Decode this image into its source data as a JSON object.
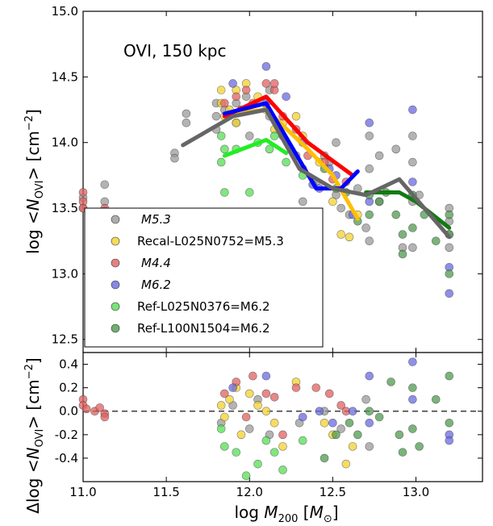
{
  "chart_data": [
    {
      "type": "scatter",
      "panel": "top",
      "annotation": "OVI, 150 kpc",
      "ylabel": "log <N_OVI> [cm^-2]",
      "ylabel_parts": {
        "prefix": "log <",
        "N": "N",
        "sub": "OVI",
        "suffix": "> [cm",
        "sup": "−2",
        "close": "]"
      },
      "xlim": [
        11.0,
        13.4
      ],
      "ylim": [
        12.4,
        15.0
      ],
      "yticks": [
        "12.5",
        "13.0",
        "13.5",
        "14.0",
        "14.5",
        "15.0"
      ],
      "legend": {
        "placement": "lower-left"
      },
      "series": [
        {
          "name": "M5.3",
          "display": "M5.3",
          "color": "#999999",
          "line_color": "#666666",
          "points": [
            [
              11.0,
              13.58
            ],
            [
              11.0,
              13.5
            ],
            [
              11.07,
              13.43
            ],
            [
              11.13,
              13.68
            ],
            [
              11.13,
              13.55
            ],
            [
              11.13,
              13.48
            ],
            [
              11.55,
              13.92
            ],
            [
              11.55,
              13.88
            ],
            [
              11.62,
              14.22
            ],
            [
              11.62,
              14.15
            ],
            [
              11.8,
              14.3
            ],
            [
              11.8,
              14.2
            ],
            [
              11.8,
              14.1
            ],
            [
              11.85,
              14.25
            ],
            [
              11.92,
              14.3
            ],
            [
              11.92,
              14.15
            ],
            [
              11.98,
              14.35
            ],
            [
              12.0,
              14.05
            ],
            [
              12.05,
              14.3
            ],
            [
              12.12,
              14.4
            ],
            [
              12.12,
              14.2
            ],
            [
              12.2,
              14.05
            ],
            [
              12.28,
              13.9
            ],
            [
              12.32,
              13.8
            ],
            [
              12.32,
              13.55
            ],
            [
              12.4,
              13.7
            ],
            [
              12.45,
              13.9
            ],
            [
              12.48,
              13.85
            ],
            [
              12.52,
              14.0
            ],
            [
              12.52,
              13.6
            ],
            [
              12.55,
              13.5
            ],
            [
              12.6,
              13.45
            ],
            [
              12.65,
              13.65
            ],
            [
              12.7,
              13.35
            ],
            [
              12.72,
              14.05
            ],
            [
              12.72,
              13.8
            ],
            [
              12.72,
              13.25
            ],
            [
              12.78,
              13.9
            ],
            [
              12.78,
              13.55
            ],
            [
              12.88,
              13.95
            ],
            [
              12.92,
              13.2
            ],
            [
              12.98,
              14.05
            ],
            [
              12.98,
              13.85
            ],
            [
              12.98,
              13.55
            ],
            [
              12.98,
              13.2
            ],
            [
              13.02,
              13.6
            ],
            [
              13.2,
              13.5
            ],
            [
              13.2,
              13.4
            ],
            [
              13.2,
              13.3
            ],
            [
              13.2,
              13.2
            ]
          ],
          "line_x": [
            11.6,
            11.9,
            12.1,
            12.3,
            12.5,
            12.7,
            12.9,
            13.2
          ],
          "line_y": [
            13.98,
            14.2,
            14.25,
            13.8,
            13.65,
            13.6,
            13.72,
            13.28
          ]
        },
        {
          "name": "Recal-L025N0752=M5.3",
          "display": "Recal-L025N0752=M5.3",
          "color": "#f2d230",
          "line_color": "#ffbf00",
          "points": [
            [
              11.83,
              14.4
            ],
            [
              11.83,
              14.3
            ],
            [
              11.85,
              14.2
            ],
            [
              11.88,
              14.25
            ],
            [
              11.92,
              14.4
            ],
            [
              11.92,
              14.15
            ],
            [
              11.98,
              14.45
            ],
            [
              12.05,
              14.35
            ],
            [
              12.1,
              14.25
            ],
            [
              12.15,
              14.1
            ],
            [
              12.2,
              14.15
            ],
            [
              12.28,
              14.2
            ],
            [
              12.32,
              14.05
            ],
            [
              12.42,
              13.85
            ],
            [
              12.5,
              13.55
            ],
            [
              12.55,
              13.3
            ],
            [
              12.6,
              13.28
            ],
            [
              12.65,
              13.45
            ]
          ],
          "line_x": [
            11.85,
            12.1,
            12.35,
            12.5,
            12.65
          ],
          "line_y": [
            14.22,
            14.25,
            13.95,
            13.75,
            13.42
          ]
        },
        {
          "name": "M4.4",
          "display": "M4.4",
          "color": "#e06060",
          "line_color": "#ff0000",
          "points": [
            [
              11.0,
              13.62
            ],
            [
              11.0,
              13.55
            ],
            [
              11.0,
              13.5
            ],
            [
              11.07,
              13.45
            ],
            [
              11.07,
              13.42
            ],
            [
              11.13,
              13.5
            ],
            [
              11.85,
              14.3
            ],
            [
              11.92,
              14.35
            ],
            [
              11.95,
              14.25
            ],
            [
              11.98,
              14.4
            ],
            [
              12.02,
              14.3
            ],
            [
              12.1,
              14.45
            ],
            [
              12.15,
              14.4
            ],
            [
              12.15,
              14.45
            ],
            [
              12.2,
              14.2
            ],
            [
              12.28,
              14.1
            ],
            [
              12.35,
              13.9
            ],
            [
              12.45,
              13.85
            ],
            [
              12.5,
              13.72
            ],
            [
              12.58,
              13.7
            ]
          ],
          "line_x": [
            11.85,
            12.1,
            12.35,
            12.62
          ],
          "line_y": [
            14.2,
            14.35,
            14.0,
            13.75
          ]
        },
        {
          "name": "M6.2",
          "display": "M6.2",
          "color": "#6a6ae0",
          "line_color": "#0000ff",
          "points": [
            [
              11.9,
              14.45
            ],
            [
              11.98,
              14.25
            ],
            [
              12.1,
              14.58
            ],
            [
              12.1,
              14.3
            ],
            [
              12.22,
              14.35
            ],
            [
              12.32,
              14.0
            ],
            [
              12.38,
              13.68
            ],
            [
              12.42,
              13.65
            ],
            [
              12.48,
              13.8
            ],
            [
              12.52,
              13.75
            ],
            [
              12.62,
              13.45
            ],
            [
              12.72,
              14.15
            ],
            [
              12.72,
              13.55
            ],
            [
              12.98,
              14.25
            ],
            [
              12.98,
              13.7
            ],
            [
              13.2,
              13.05
            ],
            [
              13.2,
              12.85
            ]
          ],
          "line_x": [
            11.85,
            12.1,
            12.4,
            12.55,
            12.65
          ],
          "line_y": [
            14.22,
            14.3,
            13.65,
            13.65,
            13.78
          ]
        },
        {
          "name": "Ref-L025N0376=M6.2",
          "display": "Ref-L025N0376=M6.2",
          "color": "#55dd55",
          "line_color": "#22ee22",
          "points": [
            [
              11.83,
              14.05
            ],
            [
              11.83,
              13.85
            ],
            [
              11.85,
              13.95
            ],
            [
              11.85,
              13.62
            ],
            [
              11.92,
              13.95
            ],
            [
              12.0,
              13.62
            ],
            [
              12.0,
              13.45
            ],
            [
              12.05,
              14.0
            ],
            [
              12.12,
              13.95
            ],
            [
              12.15,
              14.05
            ],
            [
              12.22,
              13.85
            ],
            [
              12.32,
              13.75
            ]
          ],
          "line_x": [
            11.85,
            12.1,
            12.22
          ],
          "line_y": [
            13.9,
            14.02,
            13.92
          ]
        },
        {
          "name": "Ref-L100N1504=M6.2",
          "display": "Ref-L100N1504=M6.2",
          "color": "#4f9a4f",
          "line_color": "#137a13",
          "points": [
            [
              12.45,
              13.8
            ],
            [
              12.52,
              13.65
            ],
            [
              12.58,
              13.62
            ],
            [
              12.65,
              13.4
            ],
            [
              12.72,
              13.6
            ],
            [
              12.72,
              13.45
            ],
            [
              12.78,
              13.55
            ],
            [
              12.82,
              13.62
            ],
            [
              12.88,
              13.45
            ],
            [
              12.92,
              13.3
            ],
            [
              12.92,
              13.15
            ],
            [
              12.98,
              13.6
            ],
            [
              12.98,
              13.35
            ],
            [
              13.05,
              13.45
            ],
            [
              13.12,
              13.25
            ],
            [
              13.2,
              13.45
            ],
            [
              13.2,
              13.3
            ],
            [
              13.2,
              13.0
            ]
          ],
          "line_x": [
            12.7,
            12.9,
            13.0,
            13.2
          ],
          "line_y": [
            13.62,
            13.62,
            13.55,
            13.35
          ]
        }
      ]
    },
    {
      "type": "scatter",
      "panel": "bottom",
      "xlabel": "log M200 [M⊙]",
      "xlabel_parts": {
        "prefix": "log ",
        "M": "M",
        "sub": "200",
        "open": " [",
        "Msun": "M",
        "sun": "⊙",
        "close": "]"
      },
      "ylabel": "Δlog <N_OVI> [cm^-2]",
      "ylabel_parts": {
        "prefix": "Δlog <",
        "N": "N",
        "sub": "OVI",
        "suffix": "> [cm",
        "sup": "−2",
        "close": "]"
      },
      "xlim": [
        11.0,
        13.4
      ],
      "ylim": [
        -0.6,
        0.5
      ],
      "xticks": [
        "11.0",
        "11.5",
        "12.0",
        "12.5",
        "13.0"
      ],
      "yticks": [
        "-0.4",
        "-0.2",
        "0.0",
        "0.2",
        "0.4"
      ],
      "reference_line": 0.0,
      "series": [
        {
          "name": "M5.3",
          "color": "#999999",
          "points": [
            [
              11.83,
              -0.1
            ],
            [
              11.9,
              0.05
            ],
            [
              12.0,
              -0.15
            ],
            [
              12.05,
              0.1
            ],
            [
              12.12,
              -0.2
            ],
            [
              12.3,
              -0.1
            ],
            [
              12.45,
              0.0
            ],
            [
              12.55,
              -0.15
            ],
            [
              12.7,
              0.1
            ],
            [
              12.72,
              -0.3
            ]
          ]
        },
        {
          "name": "Recal-L025N0752=M5.3",
          "color": "#f2d230",
          "points": [
            [
              11.83,
              0.05
            ],
            [
              11.85,
              -0.05
            ],
            [
              11.88,
              0.1
            ],
            [
              11.92,
              0.2
            ],
            [
              11.95,
              -0.2
            ],
            [
              12.0,
              0.15
            ],
            [
              12.05,
              0.05
            ],
            [
              12.1,
              0.0
            ],
            [
              12.15,
              -0.1
            ],
            [
              12.2,
              -0.3
            ],
            [
              12.28,
              0.25
            ],
            [
              12.45,
              -0.1
            ],
            [
              12.5,
              -0.2
            ],
            [
              12.58,
              -0.45
            ],
            [
              12.62,
              -0.3
            ]
          ]
        },
        {
          "name": "M4.4",
          "color": "#e06060",
          "points": [
            [
              11.0,
              0.1
            ],
            [
              11.0,
              0.05
            ],
            [
              11.02,
              0.02
            ],
            [
              11.07,
              0.0
            ],
            [
              11.1,
              0.03
            ],
            [
              11.13,
              -0.02
            ],
            [
              11.13,
              -0.05
            ],
            [
              11.85,
              0.15
            ],
            [
              11.92,
              0.25
            ],
            [
              11.98,
              -0.05
            ],
            [
              12.02,
              0.3
            ],
            [
              12.1,
              0.15
            ],
            [
              12.15,
              0.12
            ],
            [
              12.2,
              -0.2
            ],
            [
              12.28,
              0.2
            ],
            [
              12.4,
              0.2
            ],
            [
              12.48,
              0.15
            ],
            [
              12.55,
              0.05
            ],
            [
              12.58,
              0.0
            ]
          ]
        },
        {
          "name": "M6.2",
          "color": "#6a6ae0",
          "points": [
            [
              11.9,
              0.2
            ],
            [
              12.1,
              0.3
            ],
            [
              12.32,
              -0.05
            ],
            [
              12.42,
              0.0
            ],
            [
              12.5,
              -0.1
            ],
            [
              12.62,
              0.0
            ],
            [
              12.72,
              0.3
            ],
            [
              12.72,
              -0.1
            ],
            [
              12.98,
              0.42
            ],
            [
              12.98,
              0.1
            ],
            [
              13.2,
              -0.2
            ],
            [
              13.2,
              -0.25
            ]
          ]
        },
        {
          "name": "Ref-L025N0376=M6.2",
          "color": "#55dd55",
          "points": [
            [
              11.83,
              -0.15
            ],
            [
              11.85,
              -0.3
            ],
            [
              11.92,
              -0.35
            ],
            [
              11.98,
              -0.55
            ],
            [
              12.05,
              -0.45
            ],
            [
              12.1,
              -0.25
            ],
            [
              12.15,
              -0.35
            ],
            [
              12.2,
              -0.5
            ],
            [
              12.32,
              -0.25
            ]
          ]
        },
        {
          "name": "Ref-L100N1504=M6.2",
          "color": "#4f9a4f",
          "points": [
            [
              12.45,
              -0.4
            ],
            [
              12.52,
              -0.2
            ],
            [
              12.6,
              -0.1
            ],
            [
              12.65,
              -0.2
            ],
            [
              12.72,
              0.0
            ],
            [
              12.78,
              -0.05
            ],
            [
              12.85,
              0.25
            ],
            [
              12.9,
              -0.2
            ],
            [
              12.92,
              -0.35
            ],
            [
              12.98,
              0.2
            ],
            [
              12.98,
              -0.15
            ],
            [
              13.02,
              -0.3
            ],
            [
              13.12,
              0.1
            ],
            [
              13.2,
              0.3
            ],
            [
              13.2,
              -0.1
            ]
          ]
        }
      ]
    }
  ]
}
